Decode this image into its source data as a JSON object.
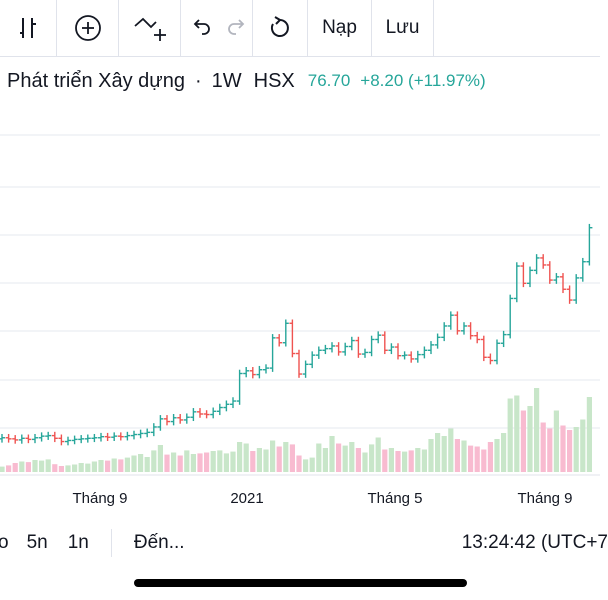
{
  "toolbar": {
    "buttons": [
      {
        "name": "candle-type-icon"
      },
      {
        "name": "add-indicator-icon"
      },
      {
        "name": "compare-icon"
      },
      {
        "name": "undo-icon"
      },
      {
        "name": "redo-icon"
      },
      {
        "name": "refresh-icon"
      }
    ],
    "load_label": "Nạp",
    "save_label": "Lưu"
  },
  "symbol": {
    "name": "Phát triển Xây dựng",
    "interval": "1W",
    "exchange": "HSX",
    "price": "76.70",
    "change": "+8.20 (+11.97%)"
  },
  "bottom": {
    "range_cut": "o",
    "range_5y": "5n",
    "range_1y": "1n",
    "goto_label": "Đến...",
    "clock": "13:24:42 (UTC+7"
  },
  "colors": {
    "up": "#26a69a",
    "down": "#ef5350",
    "vol_up": "#c8e6c9",
    "vol_down": "#f8bbd0",
    "grid": "#e6e9ef"
  },
  "chart_data": {
    "type": "ohlc-bar",
    "x_tick_labels": [
      "Tháng 9",
      "2021",
      "Tháng 5",
      "Tháng 9"
    ],
    "grid": true,
    "close": [
      29.6,
      29.4,
      29.2,
      29.5,
      29.3,
      29.6,
      29.9,
      30.0,
      29.5,
      28.9,
      29.1,
      29.3,
      29.4,
      29.5,
      29.6,
      29.8,
      29.7,
      29.9,
      29.8,
      30.0,
      30.2,
      30.4,
      30.6,
      31.6,
      33.1,
      32.6,
      33.3,
      32.9,
      33.4,
      34.4,
      34.0,
      33.9,
      34.5,
      35.2,
      35.8,
      36.4,
      41.5,
      42.0,
      41.3,
      42.2,
      42.5,
      48.1,
      47.2,
      50.8,
      45.2,
      41.4,
      43.2,
      44.9,
      45.8,
      46.1,
      46.6,
      45.5,
      46.5,
      47.6,
      45.1,
      45.4,
      47.8,
      48.6,
      45.8,
      46.4,
      44.8,
      44.9,
      44.2,
      45.0,
      45.8,
      46.8,
      48.2,
      50.3,
      52.3,
      49.4,
      50.3,
      48.5,
      47.8,
      44.5,
      43.9,
      47.1,
      48.7,
      55.4,
      61.4,
      58.2,
      60.6,
      62.9,
      61.6,
      58.8,
      59.4,
      57.1,
      55.1,
      59.2,
      62.2,
      68.5
    ],
    "open": [
      29.4,
      29.6,
      29.4,
      29.2,
      29.5,
      29.3,
      29.6,
      29.9,
      30.0,
      29.5,
      28.9,
      29.1,
      29.3,
      29.4,
      29.5,
      29.6,
      29.8,
      29.7,
      29.9,
      29.8,
      30.0,
      30.2,
      30.4,
      30.6,
      31.6,
      33.1,
      32.6,
      33.3,
      32.9,
      33.4,
      34.4,
      34.0,
      33.9,
      34.5,
      35.2,
      35.8,
      36.4,
      41.5,
      42.0,
      41.3,
      42.2,
      42.5,
      48.1,
      47.2,
      50.8,
      45.2,
      41.4,
      43.2,
      44.9,
      45.8,
      46.1,
      46.6,
      45.5,
      46.5,
      47.6,
      45.1,
      45.4,
      47.8,
      48.6,
      45.8,
      46.4,
      44.8,
      44.9,
      44.2,
      45.0,
      45.8,
      46.8,
      48.2,
      50.3,
      52.3,
      49.4,
      50.3,
      48.5,
      47.8,
      44.5,
      43.9,
      47.1,
      48.7,
      55.4,
      61.4,
      58.2,
      60.6,
      62.9,
      61.6,
      58.8,
      59.4,
      57.1,
      55.1,
      59.2,
      62.2
    ],
    "volume_relative": [
      0.18,
      0.22,
      0.3,
      0.35,
      0.33,
      0.4,
      0.38,
      0.42,
      0.26,
      0.2,
      0.22,
      0.25,
      0.3,
      0.28,
      0.35,
      0.4,
      0.38,
      0.45,
      0.42,
      0.48,
      0.55,
      0.6,
      0.5,
      0.72,
      0.9,
      0.58,
      0.65,
      0.55,
      0.72,
      0.6,
      0.62,
      0.65,
      0.7,
      0.72,
      0.62,
      0.68,
      1.0,
      0.95,
      0.7,
      0.8,
      0.75,
      1.05,
      0.85,
      1.0,
      0.92,
      0.55,
      0.42,
      0.48,
      0.95,
      0.8,
      1.2,
      0.95,
      0.88,
      1.0,
      0.8,
      0.65,
      0.92,
      1.15,
      0.75,
      0.8,
      0.7,
      0.68,
      0.72,
      0.8,
      0.75,
      1.1,
      1.3,
      1.2,
      1.45,
      1.1,
      1.05,
      0.88,
      0.85,
      0.75,
      1.0,
      1.1,
      1.3,
      2.45,
      2.55,
      2.05,
      2.2,
      2.8,
      1.65,
      1.45,
      2.05,
      1.55,
      1.4,
      1.5,
      1.75,
      2.5
    ]
  }
}
